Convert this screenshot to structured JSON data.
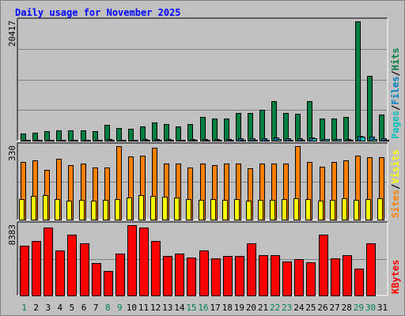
{
  "chart_data": {
    "title": "Daily usage for November 2025",
    "type": "bar",
    "days": [
      "1",
      "2",
      "3",
      "4",
      "5",
      "6",
      "7",
      "8",
      "9",
      "10",
      "11",
      "12",
      "13",
      "14",
      "15",
      "16",
      "17",
      "18",
      "19",
      "20",
      "21",
      "22",
      "23",
      "24",
      "25",
      "26",
      "27",
      "28",
      "29",
      "30",
      "31"
    ],
    "weekend_days": [
      "1",
      "8",
      "9",
      "15",
      "16",
      "22",
      "23",
      "29",
      "30"
    ],
    "colors": {
      "hits": "#008040",
      "files": "#0080c0",
      "pages": "#00c0c0",
      "visits": "#ff8000",
      "sites": "#ffff00",
      "kbytes": "#ff0000",
      "weekday": "#000000",
      "weekend": "#00805c",
      "title": "#0000ff",
      "panel": "#c0c0c0",
      "grid": "#808080"
    },
    "panels": [
      {
        "ymax_label": "20417",
        "ylim": [
          0,
          20417
        ],
        "axis_labels": [
          {
            "text": "Pages",
            "color": "#00c0c0"
          },
          {
            "text": "/",
            "color": "#000000"
          },
          {
            "text": "Files",
            "color": "#0080c0"
          },
          {
            "text": "/",
            "color": "#000000"
          },
          {
            "text": "Hits",
            "color": "#008040"
          }
        ],
        "series": [
          {
            "name": "Hits",
            "color": "#008040",
            "values": [
              1180,
              1340,
              1580,
              1740,
              1740,
              1740,
              1580,
              2680,
              2210,
              2050,
              2370,
              3170,
              2840,
              2370,
              2840,
              4100,
              3790,
              3790,
              4730,
              4730,
              5210,
              6780,
              4730,
              4570,
              6780,
              3790,
              3790,
              4100,
              20417,
              11100,
              4410
            ]
          },
          {
            "name": "Files",
            "color": "#0080c0",
            "values": [
              160,
              160,
              200,
              200,
              200,
              200,
              160,
              240,
              200,
              200,
              240,
              280,
              240,
              200,
              240,
              320,
              320,
              280,
              360,
              360,
              400,
              480,
              360,
              360,
              480,
              320,
              320,
              320,
              800,
              640,
              360
            ]
          },
          {
            "name": "Pages",
            "color": "#00c0c0",
            "values": [
              80,
              80,
              100,
              100,
              100,
              100,
              80,
              120,
              100,
              100,
              120,
              140,
              120,
              100,
              120,
              160,
              160,
              140,
              180,
              180,
              200,
              240,
              180,
              180,
              470,
              320,
              280,
              200,
              630,
              320,
              180
            ]
          }
        ]
      },
      {
        "ymax_label": "330",
        "ylim": [
          0,
          330
        ],
        "axis_labels": [
          {
            "text": "Sites",
            "color": "#ff8000"
          },
          {
            "text": "/",
            "color": "#000000"
          },
          {
            "text": "Visits",
            "color": "#ffff00"
          }
        ],
        "series": [
          {
            "name": "Visits",
            "color": "#ff8000",
            "values": [
              258,
              266,
              222,
              273,
              244,
              251,
              233,
              233,
              330,
              284,
              288,
              323,
              251,
              251,
              233,
              251,
              244,
              251,
              251,
              229,
              251,
              251,
              251,
              330,
              258,
              237,
              258,
              266,
              288,
              280,
              280
            ]
          },
          {
            "name": "Sites",
            "color": "#ffff00",
            "values": [
              92,
              106,
              109,
              92,
              85,
              89,
              85,
              89,
              92,
              99,
              109,
              106,
              103,
              99,
              92,
              89,
              92,
              89,
              92,
              85,
              89,
              89,
              92,
              96,
              92,
              85,
              89,
              96,
              89,
              92,
              96
            ]
          }
        ]
      },
      {
        "ymax_label": "8383",
        "ylim": [
          0,
          8383
        ],
        "axis_labels": [
          {
            "text": "KBytes",
            "color": "#ff0000"
          }
        ],
        "series": [
          {
            "name": "KBytes",
            "color": "#ff0000",
            "values": [
              5930,
              6520,
              8090,
              5360,
              7230,
              6220,
              3860,
              2950,
              4990,
              8380,
              8090,
              6480,
              4720,
              4990,
              4500,
              5360,
              4400,
              4720,
              4720,
              6260,
              4850,
              4850,
              4090,
              4290,
              3960,
              7230,
              4440,
              4850,
              3200,
              6260,
              0
            ]
          }
        ]
      }
    ]
  }
}
